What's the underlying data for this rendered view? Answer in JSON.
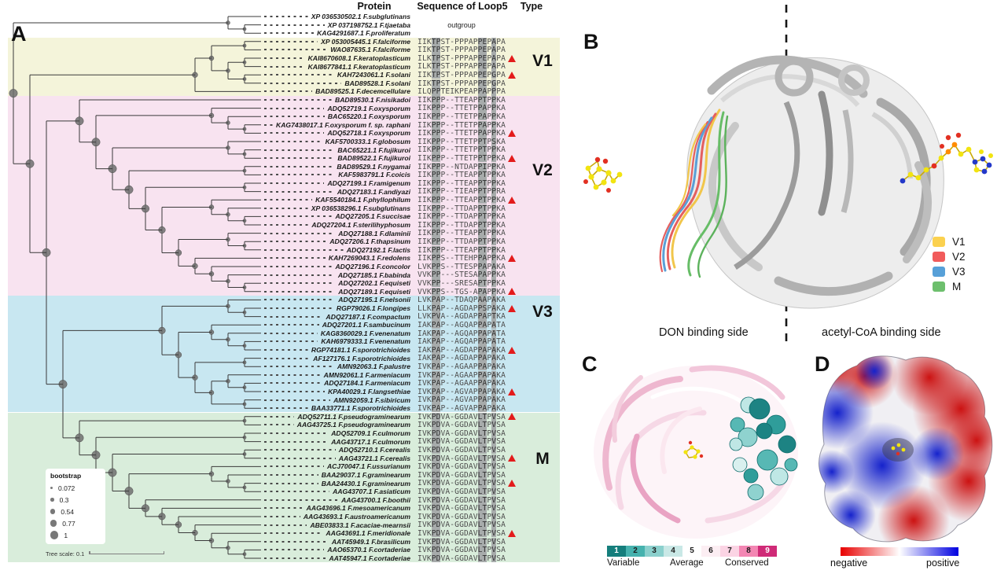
{
  "panelA": {
    "label": "A",
    "columns": {
      "protein": "Protein",
      "sequence": "Sequence of Loop5",
      "type": "Type"
    },
    "outgroup_text": "outgroup",
    "bootstrap_legend": {
      "title": "bootstrap",
      "values": [
        "0.072",
        "0.3",
        "0.54",
        "0.77",
        "1"
      ]
    },
    "tree_scale_label": "Tree scale: 0.1",
    "marker_color": "#e31b1b",
    "groups": [
      {
        "id": "V1",
        "label": "V1",
        "band_color": "#f4f4da",
        "rows": [
          3,
          9
        ]
      },
      {
        "id": "V2",
        "label": "V2",
        "band_color": "#f8e3f0",
        "rows": [
          10,
          33
        ]
      },
      {
        "id": "V3",
        "label": "V3",
        "band_color": "#c8e7f1",
        "rows": [
          34,
          47
        ]
      },
      {
        "id": "M",
        "label": "M",
        "band_color": "#d9eddb",
        "rows": [
          48,
          65
        ]
      }
    ],
    "tree": {
      "topology": [
        [
          0,
          [
            1,
            2
          ]
        ],
        [
          [
            [
              [
                3,
                4
              ],
              [
                [
                  5,
                  6
                ],
                [
                  7,
                  8
                ]
              ]
            ],
            9
          ],
          [
            [
              10,
              [
                [
                  11,
                  [
                    12,
                    [
                      13,
                      14
                    ]
                  ]
                ],
                [
                  [
                    15,
                    [
                      16,
                      17
                    ]
                  ],
                  [
                    [
                      18,
                      19
                    ],
                    [
                      [
                        20,
                        21
                      ],
                      [
                        [
                          22,
                          [
                            23,
                            [
                              24,
                              25
                            ]
                          ]
                        ],
                        [
                          [
                            26,
                            [
                              27,
                              28
                            ]
                          ],
                          [
                            29,
                            [
                              30,
                              [
                                31,
                                [
                                  32,
                                  33
                                ]
                              ]
                            ]
                          ]
                        ]
                      ]
                    ]
                  ]
                ]
              ]
            ],
            [
              [
                [
                  34,
                  [
                    35,
                    36
                  ]
                ],
                [
                  [
                    37,
                    [
                      38,
                      [
                        39,
                        40
                      ]
                    ]
                  ],
                  [
                    [
                      41,
                      42
                    ],
                    [
                      [
                        43,
                        [
                          44,
                          45
                        ]
                      ],
                      [
                        46,
                        47
                      ]
                    ]
                  ]
                ]
              ],
              [
                [
                  48,
                  49
                ],
                [
                  [
                    50,
                    51
                  ],
                  [
                    [
                      52,
                      53
                    ],
                    [
                      [
                        54,
                        [
                          55,
                          [
                            56,
                            57
                          ]
                        ]
                      ],
                      [
                        58,
                        [
                          59,
                          [
                            60,
                            [
                              61,
                              [
                                62,
                                [
                                  63,
                                  [
                                    64,
                                    65
                                  ]
                                ]
                              ]
                            ]
                          ]
                        ]
                      ]
                    ]
                  ]
                ]
              ]
            ]
          ]
        ]
      ]
    },
    "rows": [
      {
        "id": "XP 036530502.1",
        "sp": "F.subglutinans",
        "seq": "",
        "marked": false
      },
      {
        "id": "XP 037198752.1",
        "sp": "F.tjaetaba",
        "seq": "",
        "marked": false
      },
      {
        "id": "KAG4291687.1",
        "sp": "F.proliferatum",
        "seq": "",
        "marked": false
      },
      {
        "id": "XP 053005445.1",
        "sp": "F.falciforme",
        "seq": "IIKTPST-PPPAPPEPAPA",
        "marked": false
      },
      {
        "id": "WAO87635.1",
        "sp": "F.falciforme",
        "seq": "IIKTPST-PPPAPPEPAPA",
        "marked": false
      },
      {
        "id": "KAI8670608.1",
        "sp": "F.keratoplasticum",
        "seq": "ILKTPST-PPPAPPEPAPA",
        "marked": true
      },
      {
        "id": "KAI8677841.1",
        "sp": "F.keratoplasticum",
        "seq": "ILKTPST-PPPAPPEPAPA",
        "marked": false
      },
      {
        "id": "KAH7243061.1",
        "sp": "F.solani",
        "seq": "IIKTPST-PPPAPPEPGPA",
        "marked": true
      },
      {
        "id": "BAD89528.1",
        "sp": "F.solani",
        "seq": "IIKTPST-PPPAPPEPGPA",
        "marked": false
      },
      {
        "id": "BAD89525.1",
        "sp": "F.decemcellulare",
        "seq": "ILQPPTEIKPEAPPAPPPA",
        "marked": false
      },
      {
        "id": "BAD89530.1",
        "sp": "F.nisikadoi",
        "seq": "IIKPPP--TTEAPPTPPKA",
        "marked": false
      },
      {
        "id": "ADQ52719.1",
        "sp": "F.oxysporum",
        "seq": "IIKPPP--TTETPPAPPKA",
        "marked": false
      },
      {
        "id": "BAC65220.1",
        "sp": "F.oxysporum",
        "seq": "IIKPPP--TTETPPAPPKA",
        "marked": false
      },
      {
        "id": "KAG7438017.1",
        "sp": "F.oxysporum f. sp. raphani",
        "seq": "IIKPPP--TTETPPAPPKA",
        "marked": false
      },
      {
        "id": "ADQ52718.1",
        "sp": "F.oxysporum",
        "seq": "IIKPPP--TTETPPAPPKA",
        "marked": true
      },
      {
        "id": "KAF5700333.1",
        "sp": "F.globosum",
        "seq": "IIKPPP--TTETPPTPSKA",
        "marked": false
      },
      {
        "id": "BAC65221.1",
        "sp": "F.fujikuroi",
        "seq": "IIKPPP--TTETPPTPPKA",
        "marked": false
      },
      {
        "id": "BAD89522.1",
        "sp": "F.fujikuroi",
        "seq": "IIKPPP--TTETPPTPPKA",
        "marked": true
      },
      {
        "id": "BAD89529.1",
        "sp": "F.nygamai",
        "seq": "IIKPPP--NTDAPPIPPKA",
        "marked": false
      },
      {
        "id": "KAF5983791.1",
        "sp": "F.coicis",
        "seq": "IIKPPP--TTEAPPTPPKA",
        "marked": false
      },
      {
        "id": "ADQ27199.1",
        "sp": "F.ramigenum",
        "seq": "IIKPPP--TTEAPPTPPKA",
        "marked": false
      },
      {
        "id": "ADQ27183.1",
        "sp": "F.andiyazi",
        "seq": "IIKPPP--TIEAPPTPPRA",
        "marked": false
      },
      {
        "id": "KAF5540184.1",
        "sp": "F.phyllophilum",
        "seq": "IIKPPP--TTEAPPTPPKA",
        "marked": true
      },
      {
        "id": "XP 036538296.1",
        "sp": "F.subglutinans",
        "seq": "IIKPPP--TTDAPPTPPKA",
        "marked": false
      },
      {
        "id": "ADQ27205.1",
        "sp": "F.succisae",
        "seq": "IIKPPP--TTDAPPTPPKA",
        "marked": false
      },
      {
        "id": "ADQ27204.1",
        "sp": "F.sterilihyphosum",
        "seq": "IIKPPP--TTDAPPTPPKA",
        "marked": false
      },
      {
        "id": "ADQ27188.1",
        "sp": "F.dlaminii",
        "seq": "IIKPPP--TTEAPPTPPKA",
        "marked": false
      },
      {
        "id": "ADQ27206.1",
        "sp": "F.thapsinum",
        "seq": "IIKPPP--TTDAPPTPPKA",
        "marked": false
      },
      {
        "id": "ADQ27192.1",
        "sp": "F.lactis",
        "seq": "IIKPPP--TTEAPPTPPKA",
        "marked": false
      },
      {
        "id": "KAH7269043.1",
        "sp": "F.redolens",
        "seq": "IIKPPS--TTEHPPAPPKA",
        "marked": true
      },
      {
        "id": "ADQ27196.1",
        "sp": "F.concolor",
        "seq": "LVKPPS--TTESPPAPAKA",
        "marked": false
      },
      {
        "id": "ADQ27185.1",
        "sp": "F.babinda",
        "seq": "VVKPP---STESAPAPPKA",
        "marked": false
      },
      {
        "id": "ADQ27202.1",
        "sp": "F.equiseti",
        "seq": "VVKPP---SRESAPTPPKA",
        "marked": false
      },
      {
        "id": "ADQ27189.1",
        "sp": "F.equiseti",
        "seq": "VVKPPS--TGS-APAPPKA",
        "marked": true
      },
      {
        "id": "ADQ27195.1",
        "sp": "F.nelsonii",
        "seq": "LVKPAP--TDAQPAAPAKA",
        "marked": false
      },
      {
        "id": "RGP79026.1",
        "sp": "F.longipes",
        "seq": "LLKPAP--AGDAPPSPAKA",
        "marked": true
      },
      {
        "id": "ADQ27187.1",
        "sp": "F.compactum",
        "seq": "LVKPVA--AGDAPPAPTKA",
        "marked": false
      },
      {
        "id": "ADQ27201.1",
        "sp": "F.sambucinum",
        "seq": "IAKPAP--AGQAPPAPATA",
        "marked": false
      },
      {
        "id": "KAG8360029.1",
        "sp": "F.venenatum",
        "seq": "IAKPAP--AGQAPPAPATA",
        "marked": false
      },
      {
        "id": "KAH6979333.1",
        "sp": "F.venenatum",
        "seq": "IAKPAP--AGQAPPAPATA",
        "marked": false
      },
      {
        "id": "RGP74181.1",
        "sp": "F.sporotrichioides",
        "seq": "IAKPAP--AGDAPPAPAKA",
        "marked": true
      },
      {
        "id": "AF127176.1",
        "sp": "F.sporotrichioides",
        "seq": "IAKPAP--AGDAPPAPAKA",
        "marked": false
      },
      {
        "id": "AMN92063.1",
        "sp": "F.palustre",
        "seq": "IVKPAP--AGAAPPAPAKA",
        "marked": false
      },
      {
        "id": "AMN92061.1",
        "sp": "F.armeniacum",
        "seq": "IVKPAP--AGAAPPAPAKA",
        "marked": false
      },
      {
        "id": "ADQ27184.1",
        "sp": "F.armeniacum",
        "seq": "IVKPAP--AGAAPPAPAKA",
        "marked": false
      },
      {
        "id": "KPA40029.1",
        "sp": "F.langsethiae",
        "seq": "IVKPAP--AGVAPPAPAKA",
        "marked": true
      },
      {
        "id": "AMN92059.1",
        "sp": "F.sibiricum",
        "seq": "IVKPAP--AGVAPPAPAKA",
        "marked": false
      },
      {
        "id": "BAA33771.1",
        "sp": "F.sporotrichioides",
        "seq": "IVKPAP--AGVAPPAPAKA",
        "marked": false
      },
      {
        "id": "ADQ52711.1",
        "sp": "F.pseudograminearum",
        "seq": "IVKPDVA-GGDAVLTPVSA",
        "marked": true
      },
      {
        "id": "AAG43725.1",
        "sp": "F.pseudograminearum",
        "seq": "IVKPDVA-GGDAVLTPVSA",
        "marked": false
      },
      {
        "id": "ADQ52709.1",
        "sp": "F.culmorum",
        "seq": "IVKPDVA-GGDAVLTPVSA",
        "marked": false
      },
      {
        "id": "AAG43717.1",
        "sp": "F.culmorum",
        "seq": "IVKPDVA-GGDAVLTPVSA",
        "marked": false
      },
      {
        "id": "ADQ52710.1",
        "sp": "F.cerealis",
        "seq": "IVKPDVA-GGDAVLTPVSA",
        "marked": false
      },
      {
        "id": "AAG43721.1",
        "sp": "F.cerealis",
        "seq": "IVKPDVA-GGDAVLTPVSA",
        "marked": true
      },
      {
        "id": "ACJ70047.1",
        "sp": "F.ussurianum",
        "seq": "IVKPDVA-GGDAVLTPVSA",
        "marked": false
      },
      {
        "id": "BAA29037.1",
        "sp": "F.graminearum",
        "seq": "IVKPDVA-GGDAVLTPVSA",
        "marked": false
      },
      {
        "id": "BAA24430.1",
        "sp": "F.graminearum",
        "seq": "IVKPDVA-GGDAVLTPVSA",
        "marked": true
      },
      {
        "id": "AAG43707.1",
        "sp": "F.asiaticum",
        "seq": "IVKPDVA-GGDAVLTPVSA",
        "marked": false
      },
      {
        "id": "AAG43700.1",
        "sp": "F.boothii",
        "seq": "IVKPDVA-GGDAVLTPVSA",
        "marked": false
      },
      {
        "id": "AAG43696.1",
        "sp": "F.mesoamericanum",
        "seq": "IVKPDVA-GGDAVLTPVSA",
        "marked": false
      },
      {
        "id": "AAG43693.1",
        "sp": "F.austroamericanum",
        "seq": "IVKPDVA-GGDAVLTPVSA",
        "marked": false
      },
      {
        "id": "ABE03833.1",
        "sp": "F.acaciae-mearnsii",
        "seq": "IVKPDVA-GGDAVLTPVSA",
        "marked": false
      },
      {
        "id": "AAG43691.1",
        "sp": "F.meridionale",
        "seq": "IVKPDVA-GGDAVLTPVSA",
        "marked": true
      },
      {
        "id": "AAT45949.1",
        "sp": "F.brasilicum",
        "seq": "IVKPDVA-GGDAVLTPVSA",
        "marked": false
      },
      {
        "id": "AAO65370.1",
        "sp": "F.cortaderiae",
        "seq": "IVKPDVA-GGDAVLTPVSA",
        "marked": false
      },
      {
        "id": "AAT45947.1",
        "sp": "F.cortaderiae",
        "seq": "IVKPDVA-GGDAVLTPVSA",
        "marked": false
      }
    ]
  },
  "panelB": {
    "label": "B",
    "legend": [
      {
        "label": "V1",
        "color": "#fbd14f"
      },
      {
        "label": "V2",
        "color": "#f15b5b"
      },
      {
        "label": "V3",
        "color": "#57a0d8"
      },
      {
        "label": "M",
        "color": "#6dbf6d"
      }
    ],
    "left_side_label": "DON binding side",
    "right_side_label": "acetyl-CoA binding side"
  },
  "panelC": {
    "label": "C",
    "scale": {
      "cells": [
        {
          "n": "1",
          "color": "#157e7c",
          "text_color": "#ffffff"
        },
        {
          "n": "2",
          "color": "#46b2ae",
          "text_color": "#1c1c1c"
        },
        {
          "n": "3",
          "color": "#8bd0cd",
          "text_color": "#1c1c1c"
        },
        {
          "n": "4",
          "color": "#c9e8e6",
          "text_color": "#1c1c1c"
        },
        {
          "n": "5",
          "color": "#ffffff",
          "text_color": "#1c1c1c"
        },
        {
          "n": "6",
          "color": "#fceef3",
          "text_color": "#1c1c1c"
        },
        {
          "n": "7",
          "color": "#fbd4e4",
          "text_color": "#1c1c1c"
        },
        {
          "n": "8",
          "color": "#f386b3",
          "text_color": "#1c1c1c"
        },
        {
          "n": "9",
          "color": "#cf2a77",
          "text_color": "#ffffff"
        }
      ],
      "variable": "Variable",
      "average": "Average",
      "conserved": "Conserved"
    }
  },
  "panelD": {
    "label": "D",
    "negative": "negative",
    "positive": "positive",
    "gradient": {
      "negative_color": "#e80000",
      "positive_color": "#0000e0"
    }
  }
}
